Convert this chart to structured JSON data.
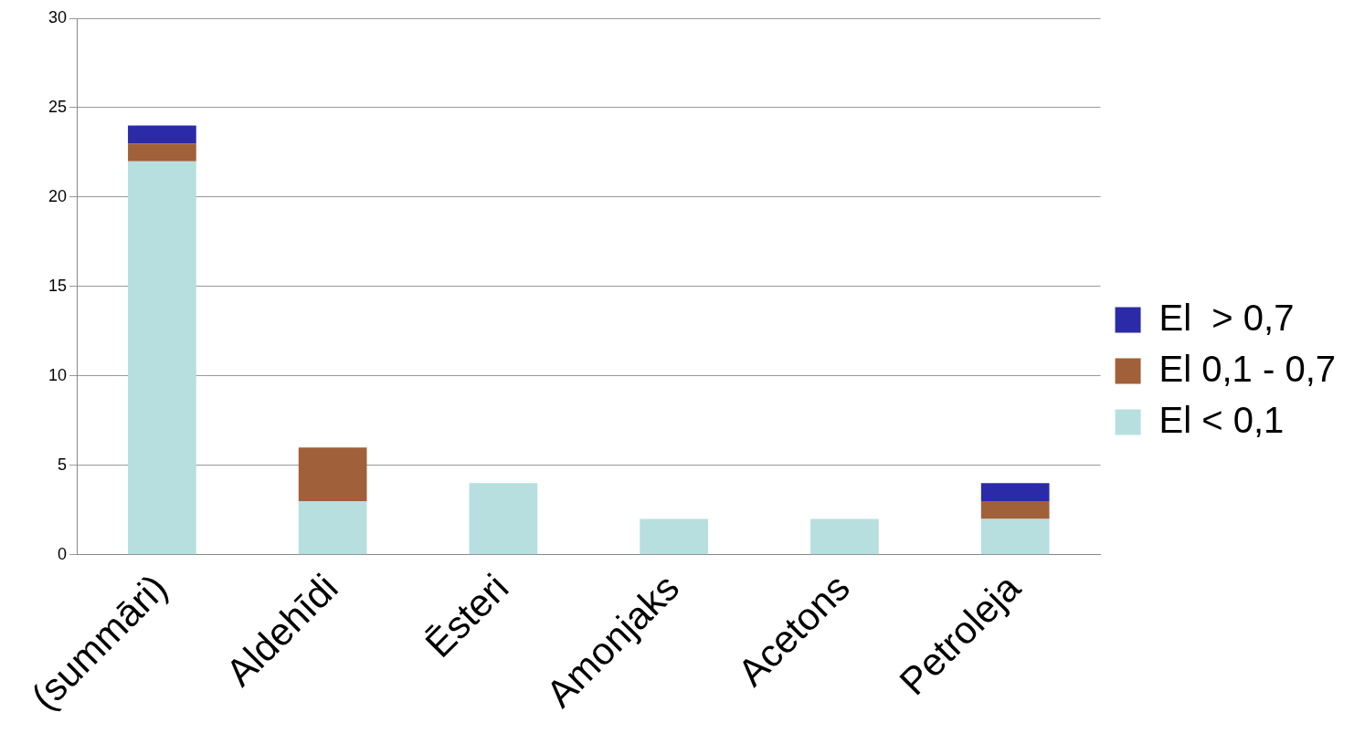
{
  "chart_data": {
    "type": "bar",
    "stacked": true,
    "categories": [
      "(summāri)",
      "Aldehīdi",
      "Ēsteri",
      "Amonjaks",
      "Acetons",
      "Petroleja"
    ],
    "series": [
      {
        "name": "El < 0,1",
        "color": "#b7dfe0",
        "values": [
          22,
          3,
          4,
          2,
          2,
          2
        ]
      },
      {
        "name": "El 0,1 - 0,7",
        "color": "#a0603a",
        "values": [
          1,
          3,
          0,
          0,
          0,
          1
        ]
      },
      {
        "name": "El  > 0,7",
        "color": "#2b2ba8",
        "values": [
          1,
          0,
          0,
          0,
          0,
          1
        ]
      }
    ],
    "ylim": [
      0,
      30
    ],
    "yticks": [
      0,
      5,
      10,
      15,
      20,
      25,
      30
    ],
    "grid": "y",
    "legend": "right"
  }
}
